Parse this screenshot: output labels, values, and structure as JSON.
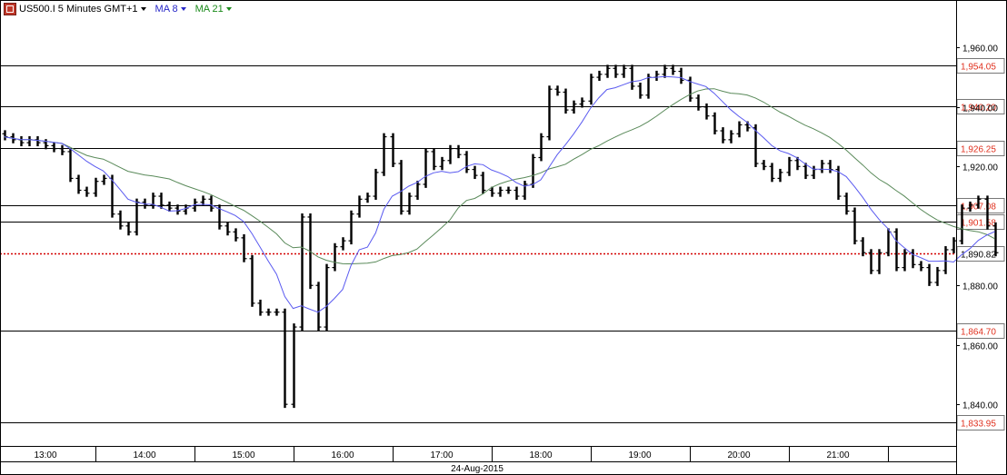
{
  "header": {
    "symbol": "US500.I 5 Minutes GMT+1",
    "ma_fast": "MA 8",
    "ma_slow": "MA 21"
  },
  "colors": {
    "ma_fast": "#5a5af0",
    "ma_slow": "#5a8a5a",
    "level_text": "#e0301e",
    "current_line": "#d40000"
  },
  "chart_data": {
    "type": "ohlc",
    "date_label": "24-Aug-2015",
    "ylim": [
      1826,
      1976
    ],
    "y_ticks": [
      "1,960.00",
      "1,940.00",
      "1,920.00",
      "1,880.00",
      "1,860.00",
      "1,840.00"
    ],
    "y_tick_values": [
      1960,
      1940,
      1920,
      1880,
      1860,
      1840
    ],
    "x_ticks": [
      "13:00",
      "14:00",
      "15:00",
      "16:00",
      "17:00",
      "18:00",
      "19:00",
      "20:00",
      "21:00"
    ],
    "levels": [
      {
        "label": "1,954.05",
        "value": 1954.05
      },
      {
        "label": "1,940.20",
        "value": 1940.2
      },
      {
        "label": "1,926.25",
        "value": 1926.25
      },
      {
        "label": "1,907.08",
        "value": 1907.08
      },
      {
        "label": "1,901.58",
        "value": 1901.58
      },
      {
        "label": "1,864.70",
        "value": 1864.7
      },
      {
        "label": "1,833.95",
        "value": 1833.95
      }
    ],
    "current": {
      "label": "1,890.82",
      "value": 1890.82
    },
    "bars_start": "12:35",
    "bar_minutes": 5,
    "closes": [
      1930,
      1929,
      1928,
      1929,
      1928,
      1927,
      1926,
      1925,
      1916,
      1912,
      1911,
      1915,
      1916,
      1904,
      1900,
      1898,
      1908,
      1907,
      1910,
      1907,
      1906,
      1905,
      1906,
      1908,
      1909,
      1906,
      1900,
      1898,
      1896,
      1889,
      1874,
      1871,
      1871,
      1871,
      1840,
      1866,
      1903,
      1880,
      1866,
      1886,
      1893,
      1895,
      1904,
      1909,
      1910,
      1918,
      1930,
      1921,
      1905,
      1910,
      1914,
      1925,
      1920,
      1922,
      1926,
      1924,
      1919,
      1917,
      1912,
      1911,
      1912,
      1912,
      1910,
      1914,
      1923,
      1930,
      1946,
      1945,
      1939,
      1941,
      1942,
      1950,
      1951,
      1953,
      1951,
      1953,
      1947,
      1944,
      1950,
      1951,
      1953,
      1952,
      1949,
      1943,
      1940,
      1937,
      1932,
      1929,
      1931,
      1934,
      1933,
      1921,
      1920,
      1916,
      1918,
      1922,
      1920,
      1917,
      1919,
      1921,
      1919,
      1910,
      1905,
      1895,
      1891,
      1885,
      1891,
      1898,
      1886,
      1891,
      1887,
      1886,
      1881,
      1885,
      1892,
      1895,
      1906,
      1907,
      1909,
      1900,
      1891
    ]
  }
}
